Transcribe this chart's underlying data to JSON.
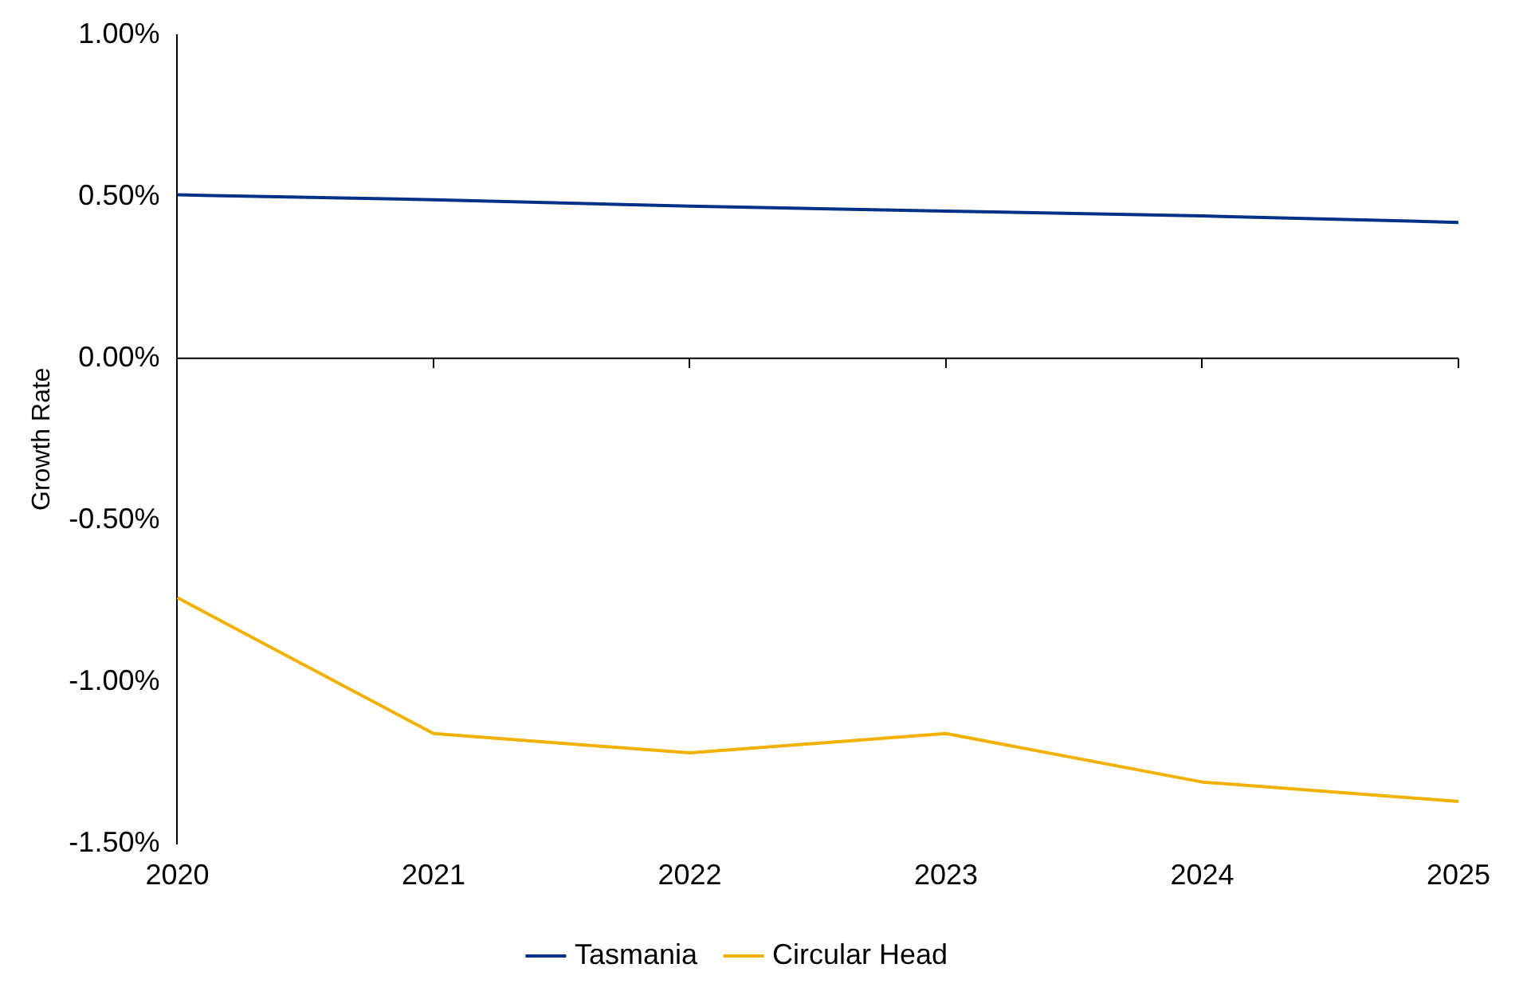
{
  "chart_data": {
    "type": "line",
    "ylabel": "Growth Rate",
    "categories": [
      "2020",
      "2021",
      "2022",
      "2023",
      "2024",
      "2025"
    ],
    "series": [
      {
        "name": "Tasmania",
        "color": "#003087",
        "values": [
          0.505,
          0.49,
          0.47,
          0.455,
          0.44,
          0.42
        ]
      },
      {
        "name": "Circular Head",
        "color": "#f2b100",
        "values": [
          -0.74,
          -1.16,
          -1.22,
          -1.16,
          -1.31,
          -1.37
        ]
      }
    ],
    "ylim": [
      -1.5,
      1.0
    ],
    "yticks": [
      {
        "value": -1.5,
        "label": "-1.50%"
      },
      {
        "value": -1.0,
        "label": "-1.00%"
      },
      {
        "value": -0.5,
        "label": "-0.50%"
      },
      {
        "value": 0,
        "label": "0.00%"
      },
      {
        "value": 0.5,
        "label": "0.50%"
      },
      {
        "value": 1.0,
        "label": "1.00%"
      }
    ],
    "ref_lines": [
      {
        "axis": "y",
        "value": 0,
        "color": "#000000",
        "line_style": "solid"
      }
    ],
    "grid": false,
    "legend": "bottom",
    "marker": "none",
    "line_style": "solid"
  }
}
